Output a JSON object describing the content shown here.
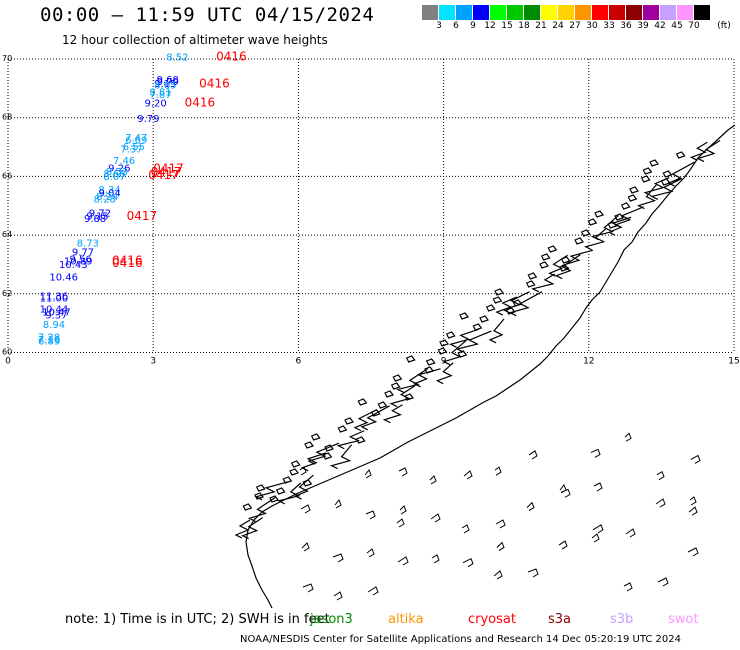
{
  "header": {
    "title": "00:00 – 11:59 UTC 04/15/2024",
    "subtitle": "12 hour collection of altimeter wave heights"
  },
  "legend": {
    "unit": "(ft)",
    "bins": [
      {
        "label": "3",
        "color": "#808080"
      },
      {
        "label": "6",
        "color": "#00e5ff"
      },
      {
        "label": "9",
        "color": "#00a2ff"
      },
      {
        "label": "12",
        "color": "#0000ff"
      },
      {
        "label": "15",
        "color": "#00ff00"
      },
      {
        "label": "18",
        "color": "#00c800"
      },
      {
        "label": "21",
        "color": "#008c00"
      },
      {
        "label": "24",
        "color": "#ffff00"
      },
      {
        "label": "27",
        "color": "#ffd200"
      },
      {
        "label": "30",
        "color": "#ff9600"
      },
      {
        "label": "33",
        "color": "#ff0000"
      },
      {
        "label": "36",
        "color": "#c80000"
      },
      {
        "label": "39",
        "color": "#8c0000"
      },
      {
        "label": "42",
        "color": "#a000a0"
      },
      {
        "label": "45",
        "color": "#c8a0ff"
      },
      {
        "label": "70",
        "color": "#ff96ff"
      },
      {
        "label": "",
        "color": "#000000"
      }
    ]
  },
  "axes": {
    "lon_ticks": [
      "0",
      "3",
      "6",
      "9",
      "12",
      "15"
    ],
    "lat_ticks": [
      "70",
      "68",
      "66",
      "64",
      "62",
      "60"
    ]
  },
  "observations": [
    {
      "v": "8.52",
      "lon": 3.5,
      "lat": 69.95,
      "c": "#00a2ff"
    },
    {
      "v": "9.68",
      "lon": 3.3,
      "lat": 69.18,
      "c": "#0000ff"
    },
    {
      "v": "9.79",
      "lon": 3.3,
      "lat": 69.12,
      "c": "#0000ff"
    },
    {
      "v": "9.15",
      "lon": 3.25,
      "lat": 69.05,
      "c": "#0000ff"
    },
    {
      "v": "8.65",
      "lon": 3.25,
      "lat": 68.99,
      "c": "#00a2ff"
    },
    {
      "v": "8.81",
      "lon": 3.15,
      "lat": 68.75,
      "c": "#00a2ff"
    },
    {
      "v": "7.87",
      "lon": 3.15,
      "lat": 68.67,
      "c": "#00a2ff"
    },
    {
      "v": "9.20",
      "lon": 3.05,
      "lat": 68.39,
      "c": "#0000ff"
    },
    {
      "v": "9.79",
      "lon": 2.9,
      "lat": 67.86,
      "c": "#0000ff"
    },
    {
      "v": "7.47",
      "lon": 2.65,
      "lat": 67.2,
      "c": "#00a2ff"
    },
    {
      "v": "6.69",
      "lon": 2.65,
      "lat": 67.12,
      "c": "#00a2ff"
    },
    {
      "v": "6.55",
      "lon": 2.6,
      "lat": 66.9,
      "c": "#00a2ff"
    },
    {
      "v": "7.37",
      "lon": 2.55,
      "lat": 66.82,
      "c": "#00a2ff"
    },
    {
      "v": "7.46",
      "lon": 2.4,
      "lat": 66.43,
      "c": "#00a2ff"
    },
    {
      "v": "9.26",
      "lon": 2.3,
      "lat": 66.16,
      "c": "#0000ff"
    },
    {
      "v": "8.53",
      "lon": 2.25,
      "lat": 66.04,
      "c": "#00a2ff"
    },
    {
      "v": "8.68",
      "lon": 2.2,
      "lat": 65.98,
      "c": "#00a2ff"
    },
    {
      "v": "8.07",
      "lon": 2.2,
      "lat": 65.88,
      "c": "#00a2ff"
    },
    {
      "v": "8.34",
      "lon": 2.1,
      "lat": 65.43,
      "c": "#00a2ff"
    },
    {
      "v": "9.04",
      "lon": 2.1,
      "lat": 65.32,
      "c": "#0000ff"
    },
    {
      "v": "8.24",
      "lon": 2.05,
      "lat": 65.19,
      "c": "#00a2ff"
    },
    {
      "v": "8.28",
      "lon": 2.0,
      "lat": 65.11,
      "c": "#00a2ff"
    },
    {
      "v": "9.72",
      "lon": 1.9,
      "lat": 64.63,
      "c": "#0000ff"
    },
    {
      "v": "9.15",
      "lon": 1.85,
      "lat": 64.53,
      "c": "#0000ff"
    },
    {
      "v": "9.88",
      "lon": 1.8,
      "lat": 64.45,
      "c": "#0000ff"
    },
    {
      "v": "8.73",
      "lon": 1.65,
      "lat": 63.62,
      "c": "#00a2ff"
    },
    {
      "v": "9.77",
      "lon": 1.55,
      "lat": 63.3,
      "c": "#0000ff"
    },
    {
      "v": "9.56",
      "lon": 1.5,
      "lat": 63.07,
      "c": "#0000ff"
    },
    {
      "v": "10.89",
      "lon": 1.45,
      "lat": 62.99,
      "c": "#0000ff"
    },
    {
      "v": "10.43",
      "lon": 1.35,
      "lat": 62.88,
      "c": "#0000ff"
    },
    {
      "v": "10.46",
      "lon": 1.15,
      "lat": 62.46,
      "c": "#0000ff"
    },
    {
      "v": "11.36",
      "lon": 0.95,
      "lat": 61.81,
      "c": "#0000ff"
    },
    {
      "v": "11.00",
      "lon": 0.95,
      "lat": 61.73,
      "c": "#0000ff"
    },
    {
      "v": "10.44",
      "lon": 0.95,
      "lat": 61.36,
      "c": "#0000ff"
    },
    {
      "v": "10.47",
      "lon": 1.0,
      "lat": 61.26,
      "c": "#0000ff"
    },
    {
      "v": "9.37",
      "lon": 1.0,
      "lat": 61.16,
      "c": "#0000ff"
    },
    {
      "v": "8.94",
      "lon": 0.95,
      "lat": 60.84,
      "c": "#00a2ff"
    },
    {
      "v": "7.28",
      "lon": 0.85,
      "lat": 60.41,
      "c": "#00a2ff"
    },
    {
      "v": "7.16",
      "lon": 0.85,
      "lat": 60.33,
      "c": "#00a2ff"
    },
    {
      "v": "6.89",
      "lon": 0.85,
      "lat": 60.27,
      "c": "#00a2ff"
    }
  ],
  "date_labels": [
    {
      "v": "0416",
      "lon": 4.3,
      "lat": 69.95
    },
    {
      "v": "0416",
      "lon": 3.95,
      "lat": 69.03
    },
    {
      "v": "0416",
      "lon": 3.65,
      "lat": 68.39
    },
    {
      "v": "0417",
      "lon": 3.0,
      "lat": 66.13
    },
    {
      "v": "0417",
      "lon": 2.95,
      "lat": 66.02
    },
    {
      "v": "0417",
      "lon": 2.9,
      "lat": 65.91
    },
    {
      "v": "0417",
      "lon": 2.45,
      "lat": 64.52
    },
    {
      "v": "0416",
      "lon": 2.15,
      "lat": 63.0
    },
    {
      "v": "0416",
      "lon": 2.15,
      "lat": 62.91
    }
  ],
  "date_label_color": "#ff0000",
  "note": "note:  1) Time is in UTC; 2) SWH is in feet",
  "satellites": [
    {
      "name": "jason3",
      "color": "#008c00"
    },
    {
      "name": "altika",
      "color": "#ff9600"
    },
    {
      "name": "cryosat",
      "color": "#ff0000"
    },
    {
      "name": "s3a",
      "color": "#8c0000"
    },
    {
      "name": "s3b",
      "color": "#c8a0ff"
    },
    {
      "name": "swot",
      "color": "#ff96ff"
    }
  ],
  "footer": "NOAA/NESDIS Center for Satellite Applications and Research   14 Dec 05:20:19 UTC 2024"
}
